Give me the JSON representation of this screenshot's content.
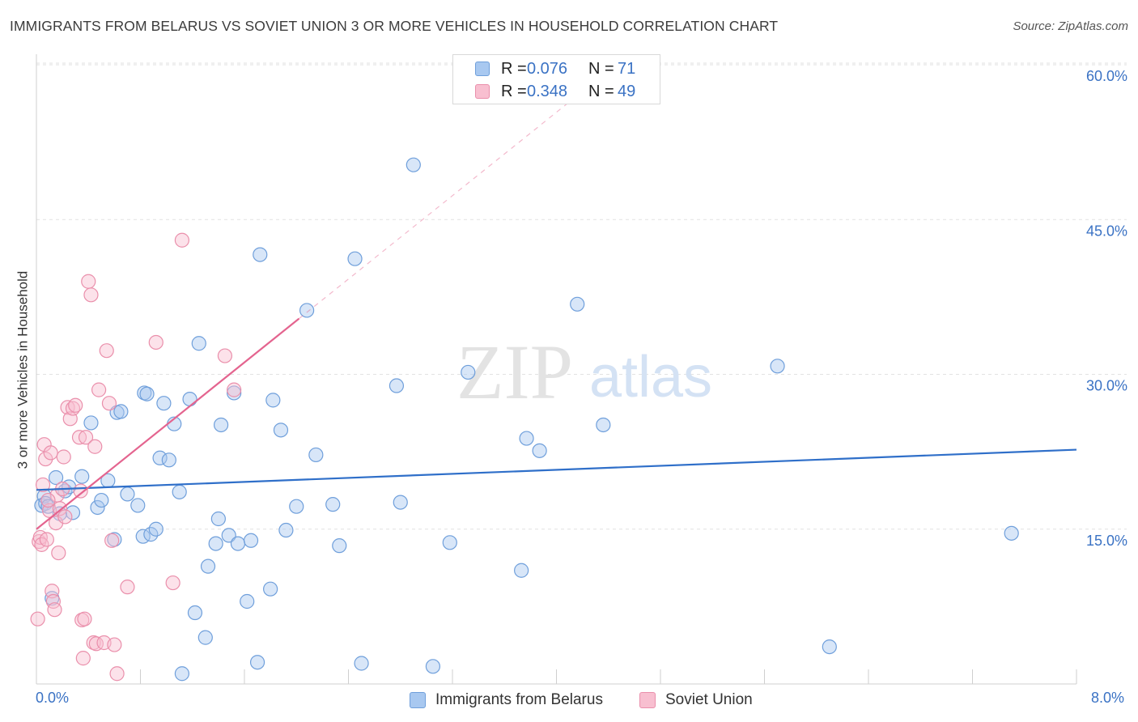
{
  "title": "IMMIGRANTS FROM BELARUS VS SOVIET UNION 3 OR MORE VEHICLES IN HOUSEHOLD CORRELATION CHART",
  "source": "Source: ZipAtlas.com",
  "watermark": {
    "zip": "ZIP",
    "atlas": "atlas"
  },
  "legend_top": {
    "rows": [
      {
        "r_label": "R =",
        "r_value": "0.076",
        "n_label": "N =",
        "n_value": "71",
        "color": "#a8c8f0",
        "border": "#6f9fdb"
      },
      {
        "r_label": "R =",
        "r_value": "0.348",
        "n_label": "N =",
        "n_value": "49",
        "color": "#f8bfd0",
        "border": "#ea8fab"
      }
    ]
  },
  "chart_data": {
    "type": "scatter",
    "title": "IMMIGRANTS FROM BELARUS VS SOVIET UNION 3 OR MORE VEHICLES IN HOUSEHOLD CORRELATION CHART",
    "xlabel": "",
    "ylabel": "3 or more Vehicles in Household",
    "xlim": [
      0,
      8
    ],
    "ylim": [
      0,
      60
    ],
    "x_tick_labels": {
      "min": "0.0%",
      "max": "8.0%"
    },
    "y_ticks": [
      15,
      30,
      45,
      60
    ],
    "y_tick_labels": [
      "15.0%",
      "30.0%",
      "45.0%",
      "60.0%"
    ],
    "grid": true,
    "legend": "bottom-center",
    "series": [
      {
        "name": "Immigrants from Belarus",
        "color": "#a8c8f0",
        "edge": "#6f9fdb",
        "line_color": "#2f6fc9",
        "trend": {
          "x0": 0.0,
          "y0": 18.8,
          "x1": 8.0,
          "y1": 22.7,
          "dashed_to": 8.0
        },
        "points": [
          [
            0.04,
            17.3
          ],
          [
            0.06,
            18.2
          ],
          [
            0.07,
            17.5
          ],
          [
            0.09,
            17.2
          ],
          [
            0.12,
            8.3
          ],
          [
            0.15,
            20.0
          ],
          [
            0.18,
            16.5
          ],
          [
            0.22,
            18.7
          ],
          [
            0.25,
            19.1
          ],
          [
            0.28,
            16.6
          ],
          [
            0.35,
            20.1
          ],
          [
            0.42,
            25.3
          ],
          [
            0.47,
            17.1
          ],
          [
            0.5,
            17.8
          ],
          [
            0.55,
            19.7
          ],
          [
            0.6,
            14.0
          ],
          [
            0.62,
            26.3
          ],
          [
            0.65,
            26.4
          ],
          [
            0.7,
            18.4
          ],
          [
            0.78,
            17.3
          ],
          [
            0.82,
            14.3
          ],
          [
            0.83,
            28.2
          ],
          [
            0.85,
            28.1
          ],
          [
            0.88,
            14.5
          ],
          [
            0.92,
            15.0
          ],
          [
            0.95,
            21.9
          ],
          [
            0.98,
            27.2
          ],
          [
            1.02,
            21.7
          ],
          [
            1.06,
            25.2
          ],
          [
            1.1,
            18.6
          ],
          [
            1.12,
            1.0
          ],
          [
            1.18,
            27.6
          ],
          [
            1.22,
            6.9
          ],
          [
            1.25,
            33.0
          ],
          [
            1.3,
            4.5
          ],
          [
            1.32,
            11.4
          ],
          [
            1.38,
            13.6
          ],
          [
            1.4,
            16.0
          ],
          [
            1.42,
            25.1
          ],
          [
            1.48,
            14.4
          ],
          [
            1.52,
            28.2
          ],
          [
            1.55,
            13.6
          ],
          [
            1.62,
            8.0
          ],
          [
            1.65,
            13.9
          ],
          [
            1.7,
            2.1
          ],
          [
            1.72,
            41.6
          ],
          [
            1.8,
            9.2
          ],
          [
            1.82,
            27.5
          ],
          [
            1.88,
            24.6
          ],
          [
            1.92,
            14.9
          ],
          [
            2.0,
            17.2
          ],
          [
            2.08,
            36.2
          ],
          [
            2.15,
            22.2
          ],
          [
            2.28,
            17.4
          ],
          [
            2.33,
            13.4
          ],
          [
            2.45,
            41.2
          ],
          [
            2.5,
            2.0
          ],
          [
            2.77,
            28.9
          ],
          [
            2.8,
            17.6
          ],
          [
            2.9,
            50.3
          ],
          [
            3.05,
            1.7
          ],
          [
            3.18,
            13.7
          ],
          [
            3.32,
            30.2
          ],
          [
            3.73,
            11.0
          ],
          [
            3.77,
            23.8
          ],
          [
            3.87,
            22.6
          ],
          [
            4.16,
            36.8
          ],
          [
            4.36,
            25.1
          ],
          [
            5.7,
            30.8
          ],
          [
            6.1,
            3.6
          ],
          [
            7.5,
            14.6
          ]
        ]
      },
      {
        "name": "Soviet Union",
        "color": "#f8bfd0",
        "edge": "#ea8fab",
        "line_color": "#e4648f",
        "trend": {
          "x0": 0.0,
          "y0": 15.0,
          "x1": 2.02,
          "y1": 35.4,
          "dashed_to": 4.2
        },
        "points": [
          [
            0.01,
            6.3
          ],
          [
            0.02,
            13.8
          ],
          [
            0.03,
            14.2
          ],
          [
            0.04,
            13.5
          ],
          [
            0.05,
            19.3
          ],
          [
            0.06,
            23.2
          ],
          [
            0.07,
            21.8
          ],
          [
            0.08,
            14.0
          ],
          [
            0.1,
            16.8
          ],
          [
            0.11,
            22.4
          ],
          [
            0.12,
            9.0
          ],
          [
            0.13,
            8.0
          ],
          [
            0.14,
            7.2
          ],
          [
            0.15,
            15.6
          ],
          [
            0.16,
            18.3
          ],
          [
            0.17,
            12.7
          ],
          [
            0.18,
            17.0
          ],
          [
            0.2,
            18.9
          ],
          [
            0.21,
            22.0
          ],
          [
            0.22,
            16.2
          ],
          [
            0.24,
            26.8
          ],
          [
            0.26,
            25.7
          ],
          [
            0.28,
            26.7
          ],
          [
            0.3,
            27.0
          ],
          [
            0.33,
            23.9
          ],
          [
            0.34,
            18.7
          ],
          [
            0.35,
            6.2
          ],
          [
            0.36,
            2.5
          ],
          [
            0.37,
            6.3
          ],
          [
            0.38,
            23.9
          ],
          [
            0.4,
            39.0
          ],
          [
            0.42,
            37.7
          ],
          [
            0.44,
            4.0
          ],
          [
            0.46,
            3.9
          ],
          [
            0.48,
            28.5
          ],
          [
            0.52,
            4.0
          ],
          [
            0.54,
            32.3
          ],
          [
            0.56,
            27.2
          ],
          [
            0.58,
            13.9
          ],
          [
            0.6,
            3.8
          ],
          [
            0.62,
            1.0
          ],
          [
            0.7,
            9.4
          ],
          [
            0.92,
            33.1
          ],
          [
            1.05,
            9.8
          ],
          [
            1.12,
            43.0
          ],
          [
            1.45,
            31.8
          ],
          [
            1.52,
            28.5
          ],
          [
            0.45,
            23.0
          ],
          [
            0.09,
            17.8
          ]
        ]
      }
    ]
  },
  "legend_bottom": {
    "items": [
      {
        "label": "Immigrants from Belarus",
        "color": "#a8c8f0",
        "border": "#6f9fdb"
      },
      {
        "label": "Soviet Union",
        "color": "#f8bfd0",
        "border": "#ea8fab"
      }
    ]
  }
}
